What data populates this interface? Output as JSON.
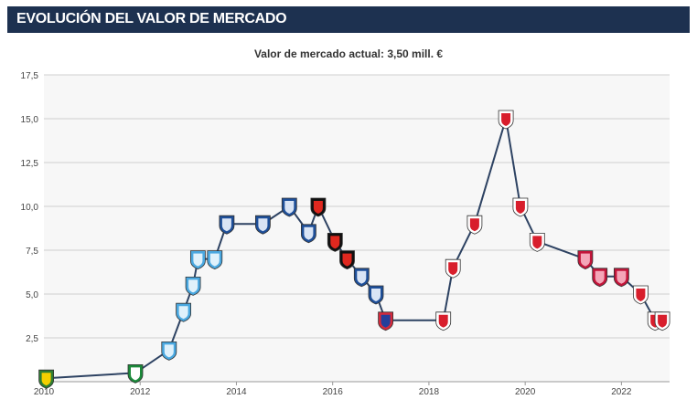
{
  "header": {
    "title": "EVOLUCIÓN DEL VALOR DE MERCADO"
  },
  "chart_data": {
    "type": "line",
    "title": "",
    "subtitle": "Valor de mercado actual: 3,50 mill. €",
    "xlabel": "",
    "ylabel": "",
    "xlim": [
      2010,
      2023
    ],
    "ylim": [
      0,
      17.5
    ],
    "grid": true,
    "x_ticks": [
      {
        "value": 2010,
        "label": "2010"
      },
      {
        "value": 2012,
        "label": "2012"
      },
      {
        "value": 2014,
        "label": "2014"
      },
      {
        "value": 2016,
        "label": "2016"
      },
      {
        "value": 2018,
        "label": "2018"
      },
      {
        "value": 2020,
        "label": "2020"
      },
      {
        "value": 2022,
        "label": "2022"
      }
    ],
    "y_ticks": [
      {
        "value": 2.5,
        "label": "2,5"
      },
      {
        "value": 5,
        "label": "5,0"
      },
      {
        "value": 7.5,
        "label": "7,5"
      },
      {
        "value": 10,
        "label": "10,0"
      },
      {
        "value": 12.5,
        "label": "12,5"
      },
      {
        "value": 15,
        "label": "15,0"
      },
      {
        "value": 17.5,
        "label": "17,5"
      }
    ],
    "line_color": "#2d4262",
    "series": [
      {
        "values": [
          {
            "x": 2010.05,
            "y": 0.2,
            "club": "club-yellow-green"
          },
          {
            "x": 2011.9,
            "y": 0.5,
            "club": "club-green-white"
          },
          {
            "x": 2012.6,
            "y": 1.8,
            "club": "club-light-blue"
          },
          {
            "x": 2012.9,
            "y": 4.0,
            "club": "club-light-blue"
          },
          {
            "x": 2013.1,
            "y": 5.5,
            "club": "club-light-blue"
          },
          {
            "x": 2013.2,
            "y": 7.0,
            "club": "club-light-blue"
          },
          {
            "x": 2013.55,
            "y": 7.0,
            "club": "club-light-blue"
          },
          {
            "x": 2013.8,
            "y": 9.0,
            "club": "club-blue-white"
          },
          {
            "x": 2014.55,
            "y": 9.0,
            "club": "club-blue-white"
          },
          {
            "x": 2015.1,
            "y": 10.0,
            "club": "club-blue-white"
          },
          {
            "x": 2015.5,
            "y": 8.5,
            "club": "club-blue-white"
          },
          {
            "x": 2015.7,
            "y": 10.0,
            "club": "club-red-black"
          },
          {
            "x": 2016.05,
            "y": 8.0,
            "club": "club-red-black"
          },
          {
            "x": 2016.3,
            "y": 7.0,
            "club": "club-red-black"
          },
          {
            "x": 2016.6,
            "y": 6.0,
            "club": "club-blue-white"
          },
          {
            "x": 2016.9,
            "y": 5.0,
            "club": "club-blue-white"
          },
          {
            "x": 2017.1,
            "y": 3.5,
            "club": "club-red-blue"
          },
          {
            "x": 2018.3,
            "y": 3.5,
            "club": "club-white-red"
          },
          {
            "x": 2018.5,
            "y": 6.5,
            "club": "club-white-red"
          },
          {
            "x": 2018.95,
            "y": 9.0,
            "club": "club-white-red"
          },
          {
            "x": 2019.6,
            "y": 15.0,
            "club": "club-white-red"
          },
          {
            "x": 2019.9,
            "y": 10.0,
            "club": "club-white-red"
          },
          {
            "x": 2020.25,
            "y": 8.0,
            "club": "club-white-red"
          },
          {
            "x": 2021.25,
            "y": 7.0,
            "club": "club-red-pink"
          },
          {
            "x": 2021.55,
            "y": 6.0,
            "club": "club-red-pink"
          },
          {
            "x": 2022.0,
            "y": 6.0,
            "club": "club-red-pink"
          },
          {
            "x": 2022.4,
            "y": 5.0,
            "club": "club-white-red"
          },
          {
            "x": 2022.7,
            "y": 3.5,
            "club": "club-white-red"
          },
          {
            "x": 2022.85,
            "y": 3.5,
            "club": "club-white-red"
          }
        ]
      }
    ]
  }
}
